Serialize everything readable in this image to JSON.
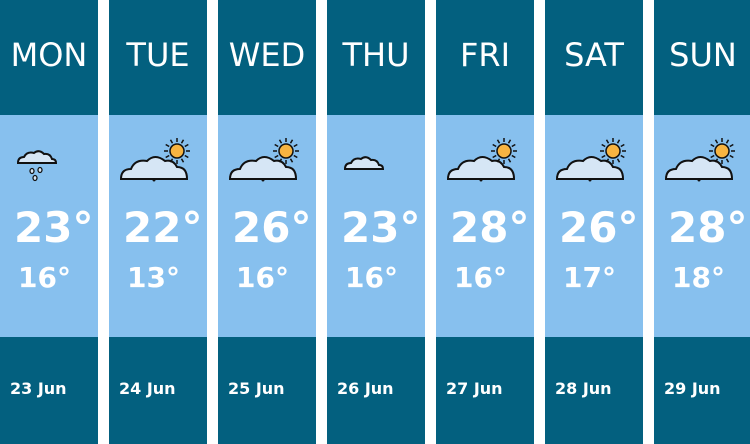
{
  "days": [
    {
      "day": "MON",
      "high": "23°",
      "low": "16°",
      "date": "23 Jun",
      "icon": "light-rain-icon"
    },
    {
      "day": "TUE",
      "high": "22°",
      "low": "13°",
      "date": "24 Jun",
      "icon": "sunny-intervals-icon"
    },
    {
      "day": "WED",
      "high": "26°",
      "low": "16°",
      "date": "25 Jun",
      "icon": "sunny-intervals-icon"
    },
    {
      "day": "THU",
      "high": "23°",
      "low": "16°",
      "date": "26 Jun",
      "icon": "light-cloud-icon"
    },
    {
      "day": "FRI",
      "high": "28°",
      "low": "16°",
      "date": "27 Jun",
      "icon": "sunny-intervals-icon"
    },
    {
      "day": "SAT",
      "high": "26°",
      "low": "17°",
      "date": "28 Jun",
      "icon": "sunny-intervals-icon"
    },
    {
      "day": "SUN",
      "high": "28°",
      "low": "18°",
      "date": "29 Jun",
      "icon": "sunny-intervals-icon"
    }
  ],
  "colors": {
    "header": "#03607f",
    "body": "#87c0ee",
    "sun": "#f7b441",
    "cloud": "#d6e6f5"
  }
}
